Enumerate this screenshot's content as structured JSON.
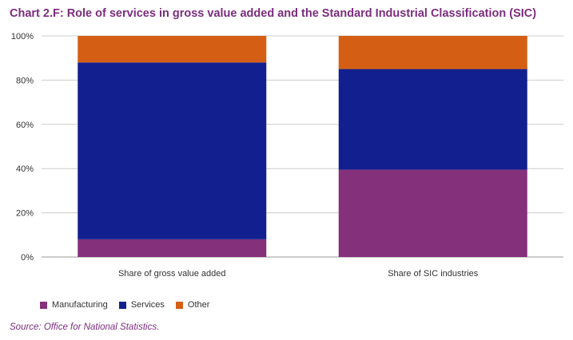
{
  "chart_data": {
    "type": "bar",
    "stacked": true,
    "title": "Chart 2.F: Role of services in gross value added and the Standard Industrial Classification (SIC)",
    "categories": [
      "Share of gross value added",
      "Share of SIC industries"
    ],
    "series": [
      {
        "name": "Manufacturing",
        "color": "#84307a",
        "values": [
          8,
          39.5
        ]
      },
      {
        "name": "Services",
        "color": "#121f8f",
        "values": [
          80,
          45.5
        ]
      },
      {
        "name": "Other",
        "color": "#d45f14",
        "values": [
          12,
          15
        ]
      }
    ],
    "ylim": [
      0,
      100
    ],
    "yticks": [
      "0%",
      "20%",
      "40%",
      "60%",
      "80%",
      "100%"
    ],
    "grid": true,
    "legend_position": "bottom-left",
    "source": "Source: Office for National Statistics."
  }
}
